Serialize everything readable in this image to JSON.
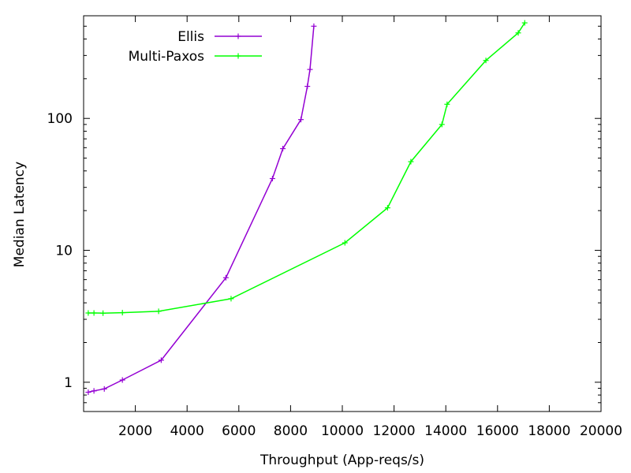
{
  "chart_data": {
    "type": "line",
    "xlabel": "Throughput (App-reqs/s)",
    "ylabel": "Median Latency",
    "xlim": [
      0,
      20000
    ],
    "ylim": [
      0.6,
      600
    ],
    "y_scale": "log",
    "grid": false,
    "legend_position": "top-left",
    "x_ticks": [
      2000,
      4000,
      6000,
      8000,
      10000,
      12000,
      14000,
      16000,
      18000,
      20000
    ],
    "y_ticks": [
      1,
      10,
      100
    ],
    "series": [
      {
        "name": "Ellis",
        "color": "#9400d3",
        "x": [
          180,
          400,
          800,
          1500,
          3000,
          5500,
          7300,
          7700,
          8400,
          8650,
          8750,
          8900
        ],
        "y": [
          0.84,
          0.86,
          0.89,
          1.04,
          1.47,
          6.2,
          35,
          59,
          98,
          175,
          235,
          500
        ]
      },
      {
        "name": "Multi-Paxos",
        "color": "#00ff00",
        "x": [
          180,
          400,
          750,
          1500,
          2900,
          5700,
          10100,
          11750,
          12650,
          13850,
          14050,
          15550,
          16800,
          17050
        ],
        "y": [
          3.35,
          3.35,
          3.34,
          3.37,
          3.45,
          4.3,
          11.4,
          21,
          47,
          90,
          128,
          275,
          445,
          530
        ]
      }
    ]
  }
}
